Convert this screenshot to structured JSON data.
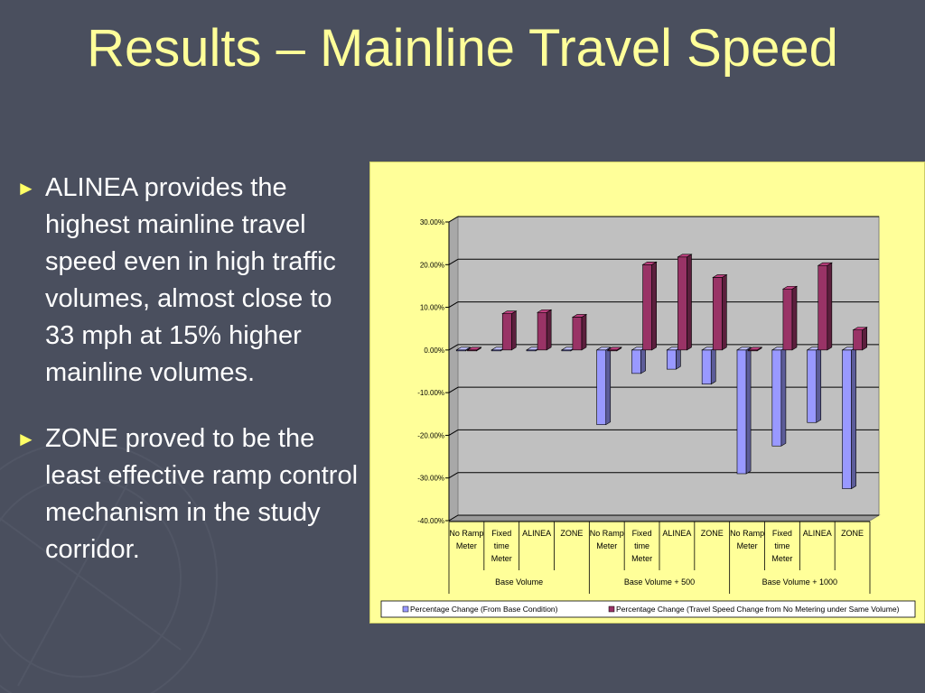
{
  "slide": {
    "title": "Results – Mainline Travel Speed",
    "bullets": [
      "ALINEA provides the highest mainline travel speed even in high traffic volumes, almost close to 33 mph at 15% higher mainline volumes.",
      "ZONE proved to be the least effective ramp control mechanism in the study corridor."
    ],
    "colors": {
      "background": "#4a4f5e",
      "title": "#ffff99",
      "bullet_marker": "#ffff66",
      "chart_panel": "#ffff99",
      "plot_area": "#c0c0c0"
    }
  },
  "chart_data": {
    "type": "bar",
    "title": "",
    "xlabel": "",
    "ylabel": "",
    "ylim": [
      -0.4,
      0.3
    ],
    "ytick_values": [
      0.3,
      0.2,
      0.1,
      0.0,
      -0.1,
      -0.2,
      -0.3,
      -0.4
    ],
    "ytick_labels": [
      "30.00%",
      "20.00%",
      "10.00%",
      "0.00%",
      "-10.00%",
      "-20.00%",
      "-30.00%",
      "-40.00%"
    ],
    "grid": true,
    "legend_position": "bottom",
    "categories": [
      [
        "No Ramp",
        "Meter"
      ],
      [
        "Fixed",
        "time",
        "Meter"
      ],
      [
        "ALINEA"
      ],
      [
        "ZONE"
      ],
      [
        "No Ramp",
        "Meter"
      ],
      [
        "Fixed",
        "time",
        "Meter"
      ],
      [
        "ALINEA"
      ],
      [
        "ZONE"
      ],
      [
        "No Ramp",
        "Meter"
      ],
      [
        "Fixed",
        "time",
        "Meter"
      ],
      [
        "ALINEA"
      ],
      [
        "ZONE"
      ]
    ],
    "groups": [
      {
        "label": "Base Volume",
        "count": 4
      },
      {
        "label": "Base Volume + 500",
        "count": 4
      },
      {
        "label": "Base Volume + 1000",
        "count": 4
      }
    ],
    "series": [
      {
        "name": "Percentage Change (From Base Condition)",
        "color": "#9999ff",
        "values": [
          0.0,
          0.0,
          0.0,
          0.0,
          -0.175,
          -0.055,
          -0.045,
          -0.08,
          -0.29,
          -0.225,
          -0.17,
          -0.325
        ]
      },
      {
        "name": "Percentage Change (Travel Speed Change from No Metering under Same Volume)",
        "color": "#993366",
        "values": [
          0.0,
          0.085,
          0.088,
          0.077,
          0.0,
          0.2,
          0.218,
          0.17,
          0.0,
          0.143,
          0.198,
          0.047
        ]
      }
    ]
  }
}
